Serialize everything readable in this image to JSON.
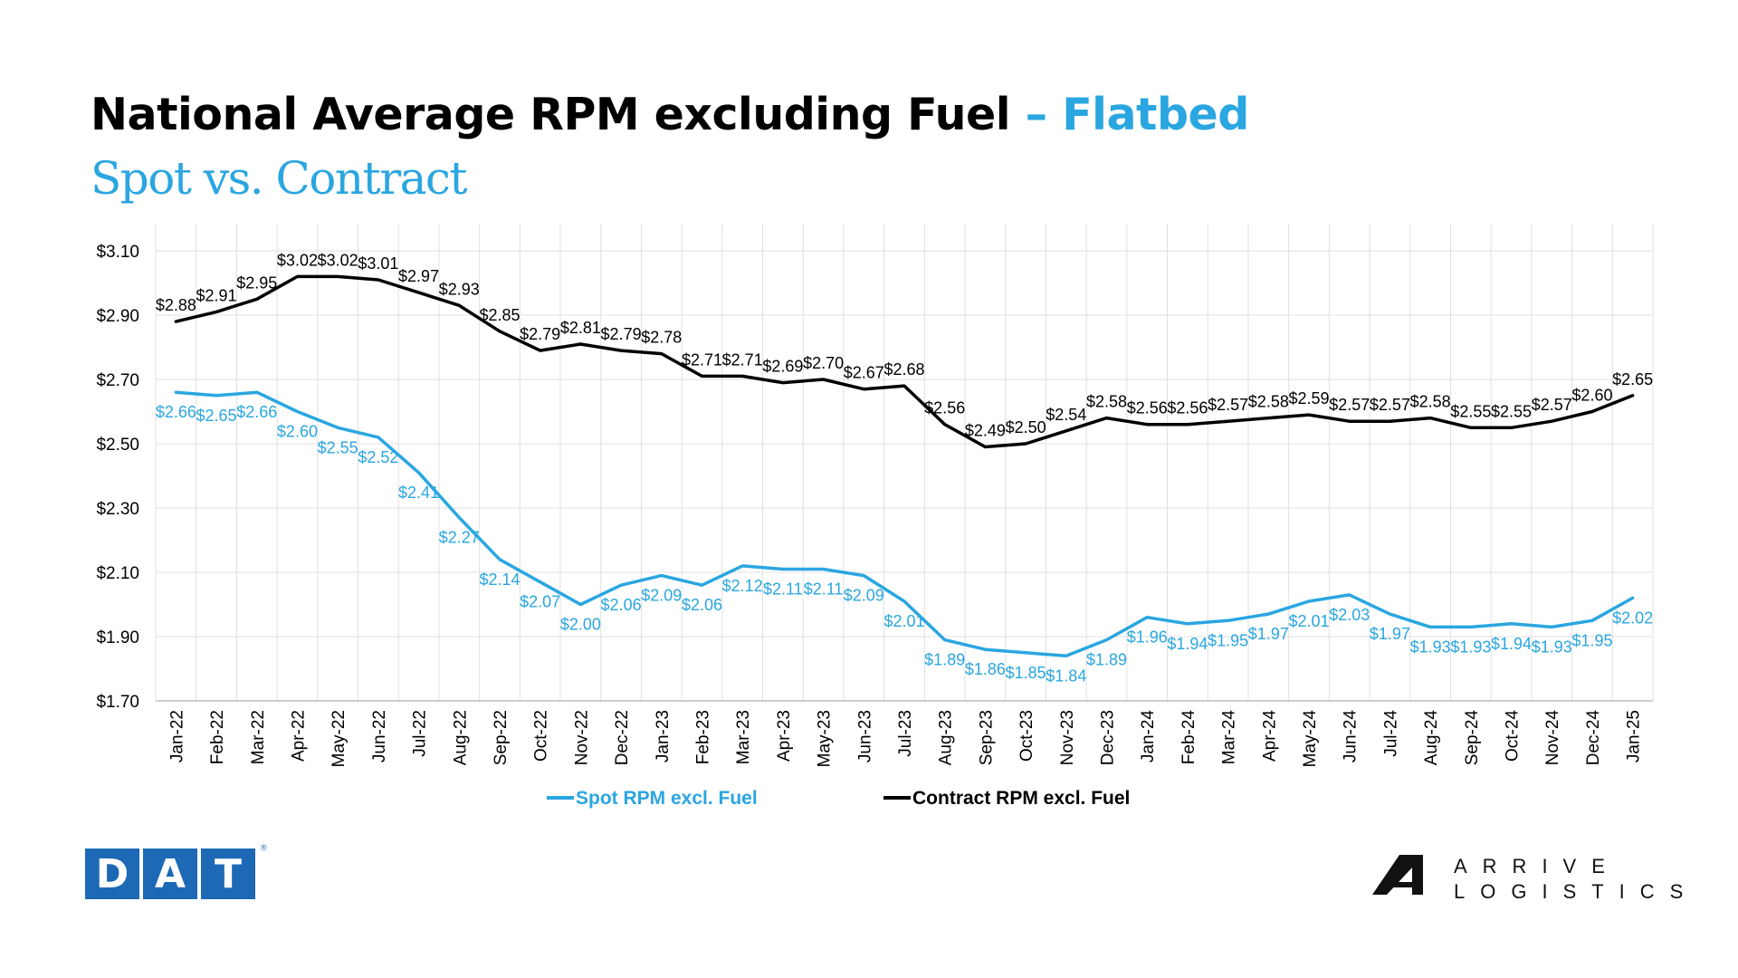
{
  "header": {
    "title_main": "National Average RPM excluding Fuel",
    "title_accent": " – Flatbed",
    "subtitle": "Spot vs. Contract"
  },
  "logos": {
    "dat_letters": [
      "D",
      "A",
      "T"
    ],
    "dat_registered": "®",
    "arrive_line1": "ARRIVE",
    "arrive_line2": "LOGISTICS"
  },
  "colors": {
    "accent": "#2aa6e0",
    "spot": "#2aa6e0",
    "contract": "#000000",
    "grid": "#e0e0e0",
    "dat_blue": "#1d69b6"
  },
  "chart_data": {
    "type": "line",
    "x": [
      "Jan-22",
      "Feb-22",
      "Mar-22",
      "Apr-22",
      "May-22",
      "Jun-22",
      "Jul-22",
      "Aug-22",
      "Sep-22",
      "Oct-22",
      "Nov-22",
      "Dec-22",
      "Jan-23",
      "Feb-23",
      "Mar-23",
      "Apr-23",
      "May-23",
      "Jun-23",
      "Jul-23",
      "Aug-23",
      "Sep-23",
      "Oct-23",
      "Nov-23",
      "Dec-23",
      "Jan-24",
      "Feb-24",
      "Mar-24",
      "Apr-24",
      "May-24",
      "Jun-24",
      "Jul-24",
      "Aug-24",
      "Sep-24",
      "Oct-24",
      "Nov-24",
      "Dec-24",
      "Jan-25"
    ],
    "series": [
      {
        "name": "Spot RPM excl. Fuel",
        "color": "#2aa6e0",
        "label_position": "below",
        "values": [
          2.66,
          2.65,
          2.66,
          2.6,
          2.55,
          2.52,
          2.41,
          2.27,
          2.14,
          2.07,
          2.0,
          2.06,
          2.09,
          2.06,
          2.12,
          2.11,
          2.11,
          2.09,
          2.01,
          1.89,
          1.86,
          1.85,
          1.84,
          1.89,
          1.96,
          1.94,
          1.95,
          1.97,
          2.01,
          2.03,
          1.97,
          1.93,
          1.93,
          1.94,
          1.93,
          1.95,
          2.02
        ],
        "labels": [
          "$2.66",
          "$2.65",
          "$2.66",
          "$2.60",
          "$2.55",
          "$2.52",
          "$2.41",
          "$2.27",
          "$2.14",
          "$2.07",
          "$2.00",
          "$2.06",
          "$2.09",
          "$2.06",
          "$2.12",
          "$2.11",
          "$2.11",
          "$2.09",
          "$2.01",
          "$1.89",
          "$1.86",
          "$1.85",
          "$1.84",
          "$1.89",
          "$1.96",
          "$1.94",
          "$1.95",
          "$1.97",
          "$2.01",
          "$2.03",
          "$1.97",
          "$1.93",
          "$1.93",
          "$1.94",
          "$1.93",
          "$1.95",
          "$2.02"
        ]
      },
      {
        "name": "Contract RPM excl. Fuel",
        "color": "#000000",
        "label_position": "above",
        "values": [
          2.88,
          2.91,
          2.95,
          3.02,
          3.02,
          3.01,
          2.97,
          2.93,
          2.85,
          2.79,
          2.81,
          2.79,
          2.78,
          2.71,
          2.71,
          2.69,
          2.7,
          2.67,
          2.68,
          2.56,
          2.49,
          2.5,
          2.54,
          2.58,
          2.56,
          2.56,
          2.57,
          2.58,
          2.59,
          2.57,
          2.57,
          2.58,
          2.55,
          2.55,
          2.57,
          2.6,
          2.65
        ],
        "labels": [
          "$2.88",
          "$2.91",
          "$2.95",
          "$3.02",
          "$3.02",
          "$3.01",
          "$2.97",
          "$2.93",
          "$2.85",
          "$2.79",
          "$2.81",
          "$2.79",
          "$2.78",
          "$2.71",
          "$2.71",
          "$2.69",
          "$2.70",
          "$2.67",
          "$2.68",
          "$2.56",
          "$2.49",
          "$2.50",
          "$2.54",
          "$2.58",
          "$2.56",
          "$2.56",
          "$2.57",
          "$2.58",
          "$2.59",
          "$2.57",
          "$2.57",
          "$2.58",
          "$2.55",
          "$2.55",
          "$2.57",
          "$2.60",
          "$2.65"
        ]
      }
    ],
    "y_ticks": [
      1.7,
      1.9,
      2.1,
      2.3,
      2.5,
      2.7,
      2.9,
      3.1
    ],
    "y_tick_labels": [
      "$1.70",
      "$1.90",
      "$2.10",
      "$2.30",
      "$2.50",
      "$2.70",
      "$2.90",
      "$3.10"
    ],
    "ylim": [
      1.7,
      3.1
    ],
    "grid": true,
    "legend_position": "bottom"
  }
}
